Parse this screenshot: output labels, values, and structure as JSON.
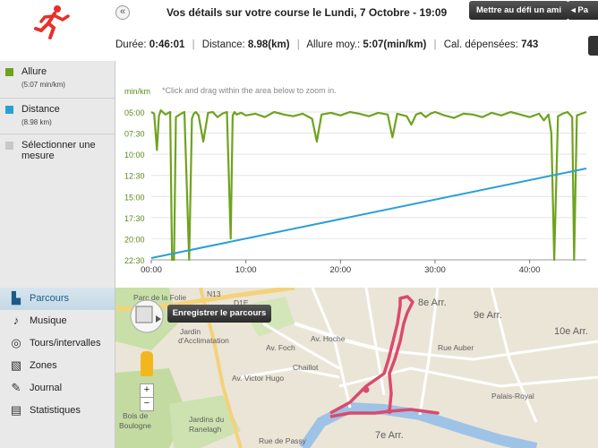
{
  "header": {
    "title": "Vos détails sur votre course le Lundi, 7 Octobre - 19:09",
    "btn_challenge": "Mettre au défi un ami",
    "btn_share": "Pa",
    "back_glyph": "«"
  },
  "stats": {
    "duree_label": "Durée: ",
    "duree_value": "0:46:01",
    "distance_label": "Distance: ",
    "distance_value": "8.98(km)",
    "allure_label": "Allure moy.: ",
    "allure_value": "5:07(min/km)",
    "cal_label": "Cal. dépensées: ",
    "cal_value": "743"
  },
  "measures": [
    {
      "name": "Allure",
      "sub": "(5:07 min/km)",
      "color": "#6ea31f"
    },
    {
      "name": "Distance",
      "sub": "(8.98 km)",
      "color": "#2a9fd6"
    },
    {
      "name": "Sélectionner une mesure",
      "sub": "",
      "color": "#c8c8c8"
    }
  ],
  "nav": [
    {
      "label": "Parcours",
      "icon": "route-icon",
      "active": true
    },
    {
      "label": "Musique",
      "icon": "music-note-icon",
      "active": false
    },
    {
      "label": "Tours/intervalles",
      "icon": "laps-icon",
      "active": false
    },
    {
      "label": "Zones",
      "icon": "zones-icon",
      "active": false
    },
    {
      "label": "Journal",
      "icon": "journal-icon",
      "active": false
    },
    {
      "label": "Statistiques",
      "icon": "statistics-icon",
      "active": false
    }
  ],
  "chart_hint": "*Click and drag within the area below to zoom in.",
  "chart_data": {
    "type": "line",
    "y_unit_label": "min/km",
    "y_ticks": [
      "05:00",
      "07:30",
      "10:00",
      "12:30",
      "15:00",
      "17:30",
      "20:00",
      "22:30"
    ],
    "x_ticks": [
      "00:00",
      "10:00",
      "20:00",
      "30:00",
      "40:00"
    ],
    "xlim": [
      0,
      46
    ],
    "series": [
      {
        "name": "Allure",
        "color": "#6ea31f",
        "x": [
          0.0,
          0.3,
          0.6,
          0.8,
          1.0,
          1.5,
          2.0,
          2.2,
          2.4,
          2.6,
          3.0,
          3.5,
          4.0,
          4.3,
          4.5,
          4.7,
          5.0,
          5.5,
          6.0,
          6.5,
          7.0,
          7.5,
          8.0,
          8.4,
          8.6,
          8.8,
          9.0,
          9.5,
          10.0,
          11.0,
          12.0,
          13.0,
          14.0,
          15.0,
          16.0,
          17.0,
          17.5,
          18.0,
          19.0,
          20.0,
          21.0,
          22.0,
          23.0,
          24.0,
          25.0,
          25.5,
          26.0,
          27.0,
          27.5,
          28.0,
          28.5,
          29.0,
          29.5,
          30.0,
          31.0,
          32.0,
          33.0,
          34.0,
          35.0,
          36.0,
          37.0,
          38.0,
          39.0,
          40.0,
          41.0,
          41.5,
          42.0,
          42.3,
          42.6,
          43.0,
          43.5,
          44.0,
          44.5,
          44.7,
          45.0,
          45.5,
          46.0
        ],
        "y": [
          5.0,
          5.2,
          9.5,
          5.5,
          4.8,
          5.3,
          5.0,
          22.5,
          22.5,
          5.6,
          5.3,
          5.0,
          22.5,
          5.8,
          5.2,
          5.0,
          5.4,
          8.5,
          5.1,
          5.0,
          5.6,
          5.2,
          5.0,
          20.0,
          5.4,
          5.0,
          5.3,
          5.1,
          5.4,
          5.2,
          5.6,
          5.0,
          5.3,
          5.5,
          5.2,
          5.8,
          8.5,
          5.3,
          5.1,
          5.4,
          5.0,
          5.2,
          5.5,
          5.1,
          5.3,
          8.0,
          5.2,
          5.5,
          6.5,
          5.3,
          5.1,
          5.6,
          5.2,
          5.0,
          5.4,
          5.7,
          5.2,
          5.3,
          5.6,
          5.1,
          5.4,
          5.0,
          5.3,
          5.6,
          5.2,
          6.0,
          5.3,
          7.5,
          22.5,
          5.5,
          5.2,
          5.0,
          5.6,
          22.5,
          5.4,
          5.2,
          5.0
        ]
      },
      {
        "name": "Distance",
        "color": "#2a9fd6",
        "x": [
          0,
          46
        ],
        "y_axis": "right",
        "y": [
          0,
          8.98
        ]
      }
    ]
  },
  "map": {
    "save_route_label": "Enregistrer le parcours",
    "zoom_in": "+",
    "zoom_out": "−",
    "route_color": "#d94b6d",
    "labels": [
      {
        "text": "Parc de la Folie",
        "cls": "pm"
      },
      {
        "text": "Jardin",
        "cls": "pm"
      },
      {
        "text": "d'Acclimatation",
        "cls": "pm"
      },
      {
        "text": "Bois de",
        "cls": "pm"
      },
      {
        "text": "Boulogne",
        "cls": "pm"
      },
      {
        "text": "Jardins du",
        "cls": "pm"
      },
      {
        "text": "Ranelagh",
        "cls": "pm"
      },
      {
        "text": "Av. Hoche",
        "cls": "pm"
      },
      {
        "text": "Av. Foch",
        "cls": "pm"
      },
      {
        "text": "Chaillot",
        "cls": "pm"
      },
      {
        "text": "Av. Victor Hugo",
        "cls": "pm"
      },
      {
        "text": "8e Arr.",
        "cls": "pmb"
      },
      {
        "text": "9e Arr.",
        "cls": "pmb"
      },
      {
        "text": "10e Arr.",
        "cls": "pmb"
      },
      {
        "text": "7e Arr.",
        "cls": "pmb"
      },
      {
        "text": "Palais-Royal",
        "cls": "pm"
      },
      {
        "text": "Rue Auber",
        "cls": "pm"
      },
      {
        "text": "Rue de Passy",
        "cls": "pm"
      },
      {
        "text": "D1E",
        "cls": "pm"
      },
      {
        "text": "N13",
        "cls": "pm"
      }
    ]
  }
}
